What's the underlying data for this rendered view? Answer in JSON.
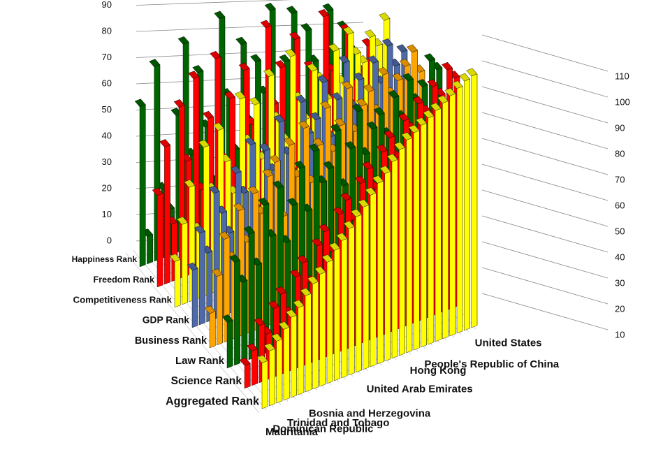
{
  "chart_data": {
    "type": "bar3d",
    "series_axis_labels_note_free": null,
    "categories": [
      "Mauritania",
      "Dominican Republic",
      null,
      "Trinidad and Tobago",
      null,
      null,
      "Bosnia and Herzegovina",
      null,
      null,
      null,
      null,
      null,
      null,
      null,
      "United Arab Emirates",
      null,
      null,
      null,
      null,
      null,
      "Hong Kong",
      null,
      "People's Republic of China",
      null,
      null,
      null,
      null,
      null,
      null,
      "United States"
    ],
    "series": [
      {
        "name": "Happiness Rank",
        "color": "#006400",
        "values": [
          70,
          12,
          85,
          30,
          20,
          60,
          90,
          40,
          75,
          50,
          25,
          95,
          60,
          35,
          80,
          45,
          70,
          55,
          90,
          30,
          65,
          85,
          40,
          75,
          60,
          50,
          80,
          35,
          70,
          60
        ]
      },
      {
        "name": "Freedom Rank",
        "color": "#ff0000",
        "values": [
          40,
          60,
          25,
          75,
          50,
          85,
          35,
          65,
          90,
          45,
          70,
          30,
          80,
          55,
          40,
          95,
          60,
          75,
          35,
          85,
          50,
          70,
          45,
          90,
          65,
          40,
          80,
          55,
          60,
          70
        ]
      },
      {
        "name": "Competitiveness Rank",
        "color": "#ffff00",
        "values": [
          20,
          35,
          50,
          30,
          65,
          45,
          70,
          55,
          40,
          80,
          60,
          75,
          50,
          85,
          65,
          55,
          90,
          70,
          60,
          80,
          75,
          65,
          85,
          70,
          90,
          80,
          75,
          85,
          80,
          90
        ]
      },
      {
        "name": "GDP Rank",
        "color": "#4f6aa8",
        "values": [
          25,
          40,
          30,
          55,
          45,
          35,
          60,
          50,
          70,
          40,
          65,
          55,
          75,
          60,
          50,
          80,
          65,
          70,
          85,
          60,
          75,
          90,
          70,
          80,
          65,
          85,
          75,
          90,
          80,
          85
        ]
      },
      {
        "name": "Business Rank",
        "color": "#ffa500",
        "values": [
          15,
          30,
          45,
          35,
          55,
          40,
          60,
          50,
          65,
          70,
          45,
          75,
          60,
          80,
          55,
          70,
          85,
          65,
          75,
          90,
          70,
          80,
          85,
          75,
          90,
          80,
          85,
          90,
          95,
          85
        ]
      },
      {
        "name": "Law Rank",
        "color": "#006400",
        "values": [
          20,
          45,
          35,
          55,
          40,
          65,
          50,
          70,
          45,
          60,
          75,
          55,
          80,
          65,
          70,
          85,
          60,
          75,
          90,
          70,
          80,
          85,
          75,
          90,
          80,
          95,
          85,
          90,
          100,
          95
        ]
      },
      {
        "name": "Science Rank",
        "color": "#ff0000",
        "values": [
          10,
          15,
          25,
          20,
          30,
          35,
          25,
          40,
          45,
          35,
          50,
          55,
          45,
          60,
          65,
          55,
          70,
          75,
          65,
          80,
          85,
          75,
          90,
          85,
          95,
          90,
          100,
          95,
          105,
          100
        ]
      },
      {
        "name": "Aggregated Rank",
        "color": "#ffff00",
        "values": [
          20,
          24,
          27,
          31,
          35,
          38,
          42,
          46,
          49,
          53,
          57,
          60,
          64,
          68,
          71,
          75,
          79,
          82,
          86,
          90,
          93,
          95,
          97,
          99,
          101,
          103,
          105,
          107,
          109,
          110
        ]
      }
    ],
    "ylim": [
      0,
      110
    ],
    "yticks": [
      0,
      10,
      20,
      30,
      40,
      50,
      60,
      70,
      80,
      90
    ],
    "y2lim": [
      0,
      110
    ],
    "y2ticks": [
      10,
      20,
      30,
      40,
      50,
      60,
      70,
      80,
      90,
      100,
      110
    ],
    "grid": true
  }
}
